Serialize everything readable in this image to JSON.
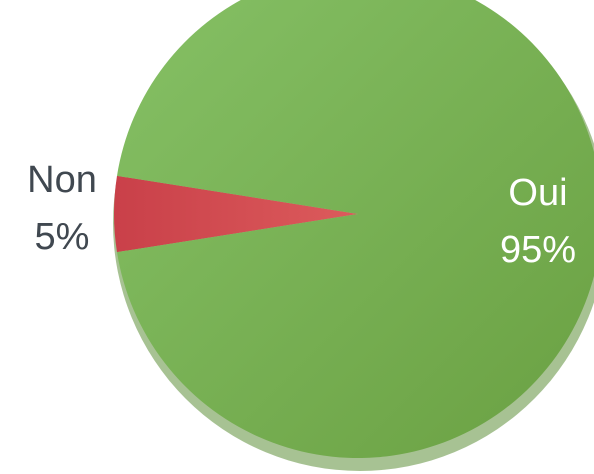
{
  "chart_data": {
    "type": "pie",
    "title": "",
    "categories": [
      "Oui",
      "Non"
    ],
    "values": [
      95,
      5
    ],
    "labels": [
      "95%",
      "5%"
    ],
    "colors": [
      "#72ad4b",
      "#d24a50"
    ],
    "label_colors": [
      "#ffffff",
      "#404850"
    ],
    "legend": "none"
  }
}
